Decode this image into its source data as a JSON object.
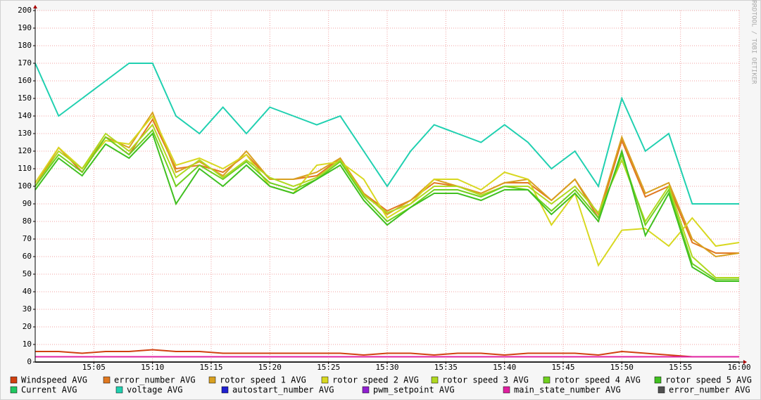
{
  "chart_data": {
    "type": "line",
    "watermark": "RRDTOOL / TOBI OETIKER",
    "x": [
      "15:00",
      "15:02",
      "15:04",
      "15:06",
      "15:08",
      "15:10",
      "15:12",
      "15:14",
      "15:16",
      "15:18",
      "15:20",
      "15:22",
      "15:24",
      "15:26",
      "15:28",
      "15:30",
      "15:32",
      "15:34",
      "15:36",
      "15:38",
      "15:40",
      "15:42",
      "15:44",
      "15:46",
      "15:48",
      "15:50",
      "15:52",
      "15:54",
      "15:56",
      "15:58",
      "16:00"
    ],
    "xlim": [
      "15:00",
      "16:00"
    ],
    "xticks": [
      "15:05",
      "15:10",
      "15:15",
      "15:20",
      "15:25",
      "15:30",
      "15:35",
      "15:40",
      "15:45",
      "15:50",
      "15:55",
      "16:00"
    ],
    "ylim": [
      0,
      200
    ],
    "yticks": [
      0,
      10,
      20,
      30,
      40,
      50,
      60,
      70,
      80,
      90,
      100,
      110,
      120,
      130,
      140,
      150,
      160,
      170,
      180,
      190,
      200
    ],
    "grid": true,
    "series": [
      {
        "name": "Windspeed AVG",
        "color": "#d04010",
        "values": [
          6,
          6,
          5,
          6,
          6,
          7,
          6,
          6,
          5,
          5,
          5,
          5,
          5,
          5,
          4,
          5,
          5,
          4,
          5,
          5,
          4,
          5,
          5,
          5,
          4,
          6,
          5,
          4,
          3,
          3,
          3
        ]
      },
      {
        "name": "error_number AVG",
        "color": "#e07820",
        "values": [
          100,
          122,
          108,
          128,
          118,
          138,
          110,
          112,
          108,
          118,
          104,
          104,
          106,
          116,
          96,
          86,
          92,
          102,
          100,
          96,
          102,
          102,
          92,
          104,
          82,
          126,
          94,
          100,
          68,
          62,
          62
        ]
      },
      {
        "name": "rotor speed 1 AVG",
        "color": "#d8a020",
        "values": [
          102,
          122,
          110,
          128,
          122,
          142,
          108,
          114,
          106,
          120,
          104,
          104,
          108,
          116,
          96,
          84,
          92,
          104,
          100,
          96,
          102,
          104,
          92,
          104,
          84,
          128,
          96,
          102,
          70,
          60,
          62
        ]
      },
      {
        "name": "rotor speed 2 AVG",
        "color": "#d8d820",
        "values": [
          102,
          122,
          110,
          126,
          124,
          140,
          112,
          116,
          110,
          118,
          100,
          96,
          112,
          114,
          104,
          82,
          90,
          104,
          104,
          98,
          108,
          104,
          78,
          96,
          55,
          75,
          76,
          66,
          82,
          66,
          68
        ]
      },
      {
        "name": "rotor speed 3 AVG",
        "color": "#b0d820",
        "values": [
          100,
          120,
          110,
          130,
          120,
          135,
          105,
          115,
          105,
          115,
          105,
          100,
          105,
          115,
          95,
          85,
          90,
          100,
          100,
          95,
          100,
          100,
          90,
          100,
          85,
          115,
          80,
          100,
          60,
          48,
          48
        ]
      },
      {
        "name": "rotor speed 4 AVG",
        "color": "#70d020",
        "values": [
          100,
          118,
          108,
          128,
          118,
          132,
          100,
          112,
          104,
          114,
          102,
          98,
          104,
          114,
          94,
          80,
          88,
          98,
          98,
          94,
          100,
          98,
          86,
          98,
          82,
          118,
          78,
          98,
          56,
          47,
          47
        ]
      },
      {
        "name": "rotor speed 5 AVG",
        "color": "#40c020",
        "values": [
          98,
          116,
          106,
          124,
          116,
          130,
          90,
          110,
          100,
          112,
          100,
          96,
          104,
          112,
          92,
          78,
          88,
          96,
          96,
          92,
          98,
          98,
          84,
          96,
          80,
          120,
          72,
          96,
          54,
          46,
          46
        ]
      },
      {
        "name": "Current AVG",
        "color": "#20c860",
        "values": [
          0,
          0,
          0,
          0,
          0,
          0,
          0,
          0,
          0,
          0,
          0,
          0,
          0,
          0,
          0,
          0,
          0,
          0,
          0,
          0,
          0,
          0,
          0,
          0,
          0,
          0,
          0,
          0,
          0,
          0,
          0
        ]
      },
      {
        "name": "voltage AVG",
        "color": "#20d0b0",
        "values": [
          170,
          140,
          150,
          160,
          170,
          170,
          140,
          130,
          145,
          130,
          145,
          140,
          135,
          140,
          120,
          100,
          120,
          135,
          130,
          125,
          135,
          125,
          110,
          120,
          100,
          150,
          120,
          130,
          90,
          90,
          90
        ]
      },
      {
        "name": "autostart_number AVG",
        "color": "#2020d0",
        "values": [
          0,
          0,
          0,
          0,
          0,
          0,
          0,
          0,
          0,
          0,
          0,
          0,
          0,
          0,
          0,
          0,
          0,
          0,
          0,
          0,
          0,
          0,
          0,
          0,
          0,
          0,
          0,
          0,
          0,
          0,
          0
        ]
      },
      {
        "name": "pwm_setpoint AVG",
        "color": "#9020d0",
        "values": [
          0,
          0,
          0,
          0,
          0,
          0,
          0,
          0,
          0,
          0,
          0,
          0,
          0,
          0,
          0,
          0,
          0,
          0,
          0,
          0,
          0,
          0,
          0,
          0,
          0,
          0,
          0,
          0,
          0,
          0,
          0
        ]
      },
      {
        "name": "main_state_number AVG",
        "color": "#e020a0",
        "values": [
          3,
          3,
          3,
          3,
          3,
          3,
          3,
          3,
          3,
          3,
          3,
          3,
          3,
          3,
          3,
          3,
          3,
          3,
          3,
          3,
          3,
          3,
          3,
          3,
          3,
          3,
          3,
          3,
          3,
          3,
          3
        ]
      },
      {
        "name": "error_number AVG",
        "color": "#505050",
        "values": [
          0,
          0,
          0,
          0,
          0,
          0,
          0,
          0,
          0,
          0,
          0,
          0,
          0,
          0,
          0,
          0,
          0,
          0,
          0,
          0,
          0,
          0,
          0,
          0,
          0,
          0,
          0,
          0,
          0,
          0,
          0
        ]
      }
    ]
  }
}
